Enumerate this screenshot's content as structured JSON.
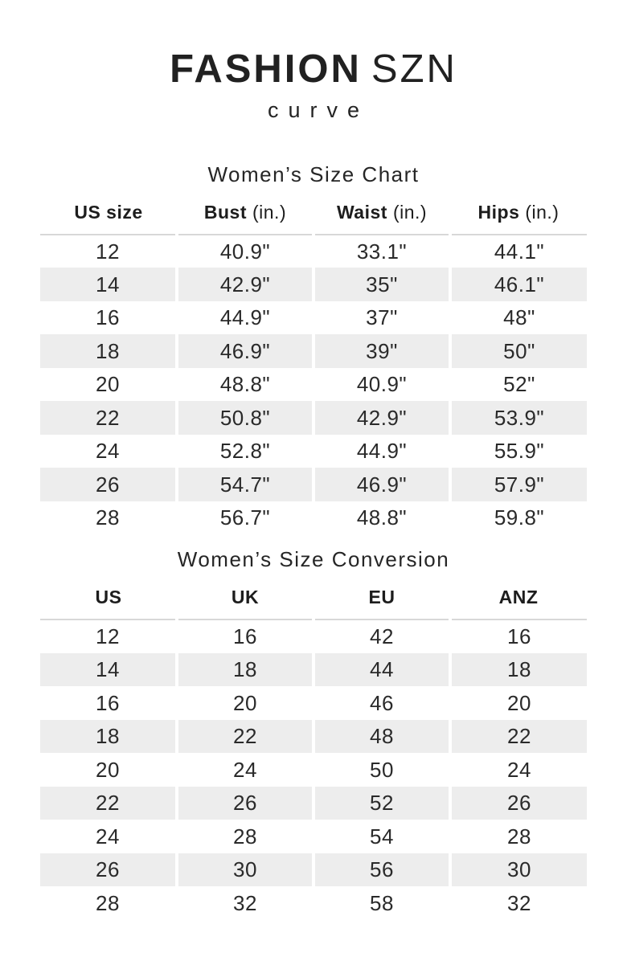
{
  "brand": {
    "name_primary": "FASHION",
    "name_secondary": "SZN",
    "tagline": "curve"
  },
  "size_chart": {
    "title": "Women’s Size Chart",
    "columns": [
      {
        "label": "US size",
        "unit": ""
      },
      {
        "label": "Bust",
        "unit": "(in.)"
      },
      {
        "label": "Waist",
        "unit": "(in.)"
      },
      {
        "label": "Hips",
        "unit": "(in.)"
      }
    ],
    "rows": [
      [
        "12",
        "40.9\"",
        "33.1\"",
        "44.1\""
      ],
      [
        "14",
        "42.9\"",
        "35\"",
        "46.1\""
      ],
      [
        "16",
        "44.9\"",
        "37\"",
        "48\""
      ],
      [
        "18",
        "46.9\"",
        "39\"",
        "50\""
      ],
      [
        "20",
        "48.8\"",
        "40.9\"",
        "52\""
      ],
      [
        "22",
        "50.8\"",
        "42.9\"",
        "53.9\""
      ],
      [
        "24",
        "52.8\"",
        "44.9\"",
        "55.9\""
      ],
      [
        "26",
        "54.7\"",
        "46.9\"",
        "57.9\""
      ],
      [
        "28",
        "56.7\"",
        "48.8\"",
        "59.8\""
      ]
    ]
  },
  "conversion_chart": {
    "title": "Women’s Size Conversion",
    "columns": [
      "US",
      "UK",
      "EU",
      "ANZ"
    ],
    "rows": [
      [
        "12",
        "16",
        "42",
        "16"
      ],
      [
        "14",
        "18",
        "44",
        "18"
      ],
      [
        "16",
        "20",
        "46",
        "20"
      ],
      [
        "18",
        "22",
        "48",
        "22"
      ],
      [
        "20",
        "24",
        "50",
        "24"
      ],
      [
        "22",
        "26",
        "52",
        "26"
      ],
      [
        "24",
        "28",
        "54",
        "28"
      ],
      [
        "26",
        "30",
        "56",
        "30"
      ],
      [
        "28",
        "32",
        "58",
        "32"
      ]
    ]
  },
  "colors": {
    "stripe": "#ededed",
    "header_rule": "#d8d8d8",
    "text": "#212121"
  }
}
